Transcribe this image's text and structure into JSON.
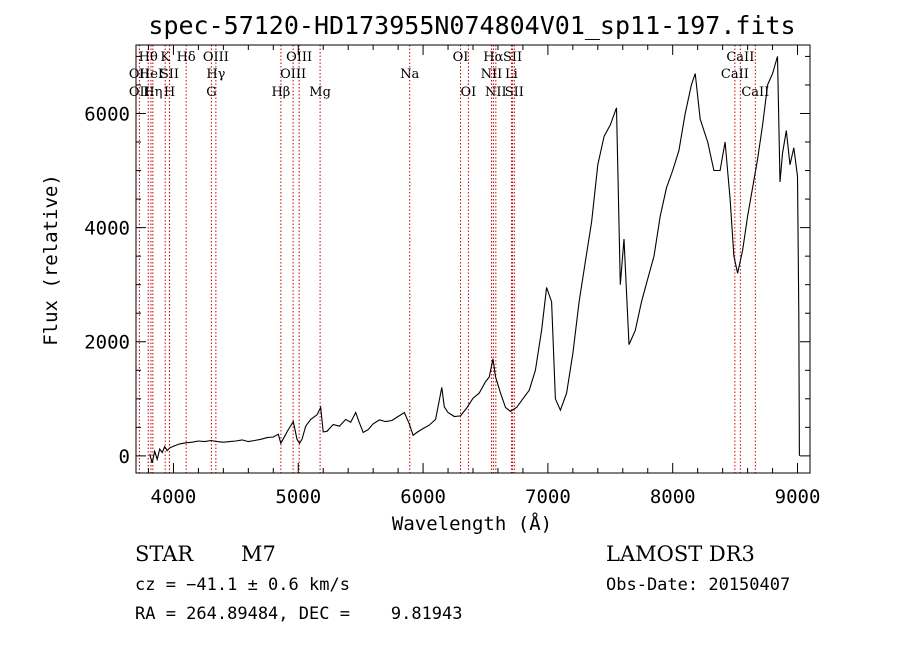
{
  "chart_data": {
    "type": "line",
    "title": "spec-57120-HD173955N074804V01_sp11-197.fits",
    "xlabel": "Wavelength (Å)",
    "ylabel": "Flux (relative)",
    "xlim": [
      3700,
      9100
    ],
    "ylim": [
      -300,
      7200
    ],
    "x_ticks": [
      4000,
      5000,
      6000,
      7000,
      8000,
      9000
    ],
    "x_tick_labels": [
      "4000",
      "5000",
      "6000",
      "7000",
      "8000",
      "9000"
    ],
    "y_ticks": [
      0,
      2000,
      4000,
      6000
    ],
    "y_tick_labels": [
      "0",
      "2000",
      "4000",
      "6000"
    ],
    "series": [
      {
        "name": "spectrum",
        "color": "#000000",
        "points": [
          [
            3810,
            30
          ],
          [
            3830,
            -120
          ],
          [
            3850,
            80
          ],
          [
            3870,
            -60
          ],
          [
            3890,
            120
          ],
          [
            3910,
            60
          ],
          [
            3930,
            160
          ],
          [
            3950,
            90
          ],
          [
            3970,
            140
          ],
          [
            4000,
            170
          ],
          [
            4050,
            210
          ],
          [
            4100,
            230
          ],
          [
            4150,
            240
          ],
          [
            4200,
            260
          ],
          [
            4250,
            250
          ],
          [
            4300,
            270
          ],
          [
            4350,
            250
          ],
          [
            4400,
            240
          ],
          [
            4450,
            250
          ],
          [
            4500,
            260
          ],
          [
            4550,
            280
          ],
          [
            4600,
            250
          ],
          [
            4650,
            270
          ],
          [
            4700,
            290
          ],
          [
            4750,
            320
          ],
          [
            4800,
            330
          ],
          [
            4840,
            380
          ],
          [
            4860,
            220
          ],
          [
            4880,
            300
          ],
          [
            4920,
            460
          ],
          [
            4960,
            600
          ],
          [
            4990,
            290
          ],
          [
            5010,
            220
          ],
          [
            5030,
            290
          ],
          [
            5060,
            520
          ],
          [
            5100,
            640
          ],
          [
            5150,
            720
          ],
          [
            5180,
            850
          ],
          [
            5200,
            420
          ],
          [
            5230,
            430
          ],
          [
            5280,
            550
          ],
          [
            5330,
            520
          ],
          [
            5380,
            640
          ],
          [
            5420,
            590
          ],
          [
            5460,
            760
          ],
          [
            5490,
            580
          ],
          [
            5520,
            410
          ],
          [
            5560,
            460
          ],
          [
            5600,
            560
          ],
          [
            5650,
            630
          ],
          [
            5700,
            600
          ],
          [
            5750,
            620
          ],
          [
            5800,
            690
          ],
          [
            5850,
            760
          ],
          [
            5890,
            560
          ],
          [
            5920,
            360
          ],
          [
            5950,
            410
          ],
          [
            6000,
            480
          ],
          [
            6050,
            540
          ],
          [
            6100,
            640
          ],
          [
            6150,
            1200
          ],
          [
            6170,
            860
          ],
          [
            6200,
            760
          ],
          [
            6250,
            690
          ],
          [
            6300,
            700
          ],
          [
            6350,
            840
          ],
          [
            6400,
            1010
          ],
          [
            6450,
            1100
          ],
          [
            6500,
            1300
          ],
          [
            6530,
            1380
          ],
          [
            6560,
            1700
          ],
          [
            6580,
            1390
          ],
          [
            6620,
            1100
          ],
          [
            6660,
            850
          ],
          [
            6700,
            780
          ],
          [
            6750,
            850
          ],
          [
            6800,
            1000
          ],
          [
            6850,
            1150
          ],
          [
            6900,
            1500
          ],
          [
            6950,
            2200
          ],
          [
            6990,
            2950
          ],
          [
            7030,
            2700
          ],
          [
            7060,
            1000
          ],
          [
            7100,
            800
          ],
          [
            7150,
            1100
          ],
          [
            7200,
            1800
          ],
          [
            7250,
            2700
          ],
          [
            7300,
            3400
          ],
          [
            7350,
            4100
          ],
          [
            7400,
            5100
          ],
          [
            7450,
            5600
          ],
          [
            7500,
            5800
          ],
          [
            7550,
            6100
          ],
          [
            7580,
            3000
          ],
          [
            7610,
            3800
          ],
          [
            7650,
            1950
          ],
          [
            7700,
            2200
          ],
          [
            7750,
            2700
          ],
          [
            7800,
            3100
          ],
          [
            7850,
            3500
          ],
          [
            7900,
            4200
          ],
          [
            7950,
            4700
          ],
          [
            8000,
            5000
          ],
          [
            8050,
            5350
          ],
          [
            8100,
            6000
          ],
          [
            8150,
            6500
          ],
          [
            8180,
            6700
          ],
          [
            8220,
            5900
          ],
          [
            8280,
            5500
          ],
          [
            8330,
            5000
          ],
          [
            8380,
            5000
          ],
          [
            8420,
            5500
          ],
          [
            8460,
            4500
          ],
          [
            8490,
            3500
          ],
          [
            8520,
            3200
          ],
          [
            8560,
            3600
          ],
          [
            8600,
            4200
          ],
          [
            8640,
            4700
          ],
          [
            8680,
            5200
          ],
          [
            8720,
            5800
          ],
          [
            8760,
            6500
          ],
          [
            8800,
            6700
          ],
          [
            8840,
            7000
          ],
          [
            8860,
            4800
          ],
          [
            8880,
            5300
          ],
          [
            8910,
            5700
          ],
          [
            8940,
            5100
          ],
          [
            8970,
            5400
          ],
          [
            9000,
            4900
          ],
          [
            9010,
            2500
          ],
          [
            9015,
            0
          ]
        ]
      }
    ],
    "line_markers": [
      {
        "name": "OII",
        "wavelength": 3727,
        "label_row": 2
      },
      {
        "name": "OII",
        "wavelength": 3727,
        "label_row": 3
      },
      {
        "name": "Hθ",
        "wavelength": 3798,
        "label_row": 1
      },
      {
        "name": "HeI",
        "wavelength": 3820,
        "label_row": 2
      },
      {
        "name": "Hη",
        "wavelength": 3835,
        "label_row": 3
      },
      {
        "name": "K",
        "wavelength": 3934,
        "label_row": 1
      },
      {
        "name": "SII",
        "wavelength": 3968,
        "label_row": 2
      },
      {
        "name": "H",
        "wavelength": 3969,
        "label_row": 3
      },
      {
        "name": "Hδ",
        "wavelength": 4102,
        "label_row": 1
      },
      {
        "name": "OIII",
        "wavelength": 4340,
        "label_row": 1
      },
      {
        "name": "Hγ",
        "wavelength": 4340,
        "label_row": 2
      },
      {
        "name": "G",
        "wavelength": 4304,
        "label_row": 3
      },
      {
        "name": "Hβ",
        "wavelength": 4861,
        "label_row": 3
      },
      {
        "name": "OIII",
        "wavelength": 4959,
        "label_row": 2
      },
      {
        "name": "OIII",
        "wavelength": 5007,
        "label_row": 1
      },
      {
        "name": "Mg",
        "wavelength": 5175,
        "label_row": 3
      },
      {
        "name": "Na",
        "wavelength": 5893,
        "label_row": 2
      },
      {
        "name": "OI",
        "wavelength": 6300,
        "label_row": 1
      },
      {
        "name": "OI",
        "wavelength": 6363,
        "label_row": 3
      },
      {
        "name": "Hα",
        "wavelength": 6563,
        "label_row": 1
      },
      {
        "name": "NII",
        "wavelength": 6548,
        "label_row": 2
      },
      {
        "name": "NII",
        "wavelength": 6583,
        "label_row": 3
      },
      {
        "name": "SII",
        "wavelength": 6717,
        "label_row": 1
      },
      {
        "name": "Li",
        "wavelength": 6708,
        "label_row": 2
      },
      {
        "name": "SII",
        "wavelength": 6731,
        "label_row": 3
      },
      {
        "name": "CaII",
        "wavelength": 8498,
        "label_row": 2
      },
      {
        "name": "CaII",
        "wavelength": 8542,
        "label_row": 1
      },
      {
        "name": "CaII",
        "wavelength": 8662,
        "label_row": 3
      }
    ]
  },
  "footer": {
    "object_type": "STAR",
    "subclass": "M7",
    "survey": "LAMOST DR3",
    "redshift_line": "cz = −41.1 ± 0.6 km/s",
    "obs_date": "Obs-Date: 20150407",
    "coords_line": "RA = 264.89484, DEC =    9.81943"
  },
  "colors": {
    "marker_line": "#cc0000",
    "axis": "#000000",
    "background": "#ffffff"
  }
}
